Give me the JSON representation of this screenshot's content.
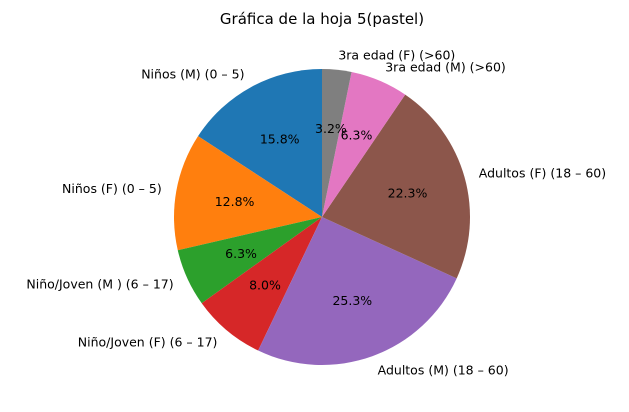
{
  "chart_data": {
    "type": "pie",
    "title": "Gráfica de la hoja 5(pastel)",
    "start_angle_deg": 90,
    "direction": "counterclockwise",
    "slices": [
      {
        "label": "Niños (M) (0 – 5)",
        "value": 15.8,
        "pct_label": "15.8%",
        "color": "#1f77b4"
      },
      {
        "label": "Niños (F) (0 – 5)",
        "value": 12.8,
        "pct_label": "12.8%",
        "color": "#ff7f0e"
      },
      {
        "label": "Niño/Joven (M ) (6 – 17)",
        "value": 6.3,
        "pct_label": "6.3%",
        "color": "#2ca02c"
      },
      {
        "label": "Niño/Joven (F) (6 – 17)",
        "value": 8.0,
        "pct_label": "8.0%",
        "color": "#d62728"
      },
      {
        "label": "Adultos (M) (18 – 60)",
        "value": 25.3,
        "pct_label": "25.3%",
        "color": "#9467bd"
      },
      {
        "label": "Adultos (F) (18 – 60)",
        "value": 22.3,
        "pct_label": "22.3%",
        "color": "#8c564b"
      },
      {
        "label": "3ra edad (M) (>60)",
        "value": 6.3,
        "pct_label": "6.3%",
        "color": "#e377c2"
      },
      {
        "label": "3ra edad (F) (>60)",
        "value": 3.2,
        "pct_label": "3.2%",
        "color": "#7f7f7f"
      }
    ]
  }
}
